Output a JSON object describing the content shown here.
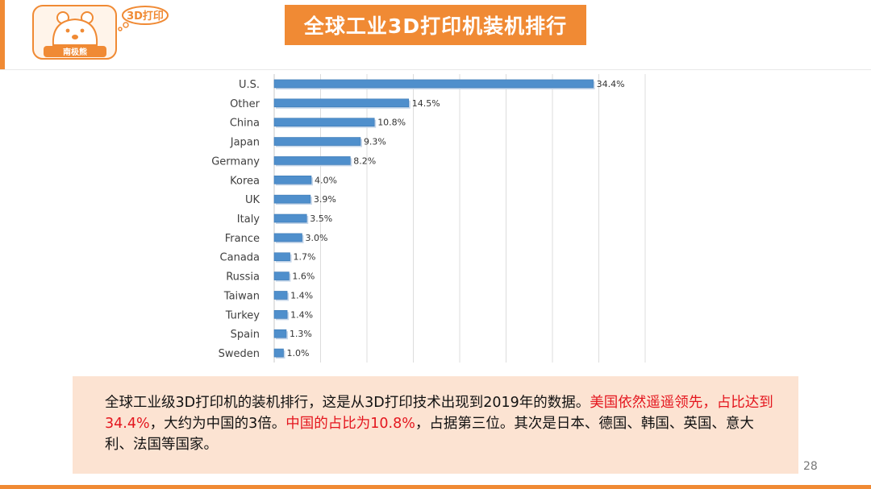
{
  "slide": {
    "title": "全球工业3D打印机装机排行",
    "page_number": "28"
  },
  "logo": {
    "bubble_text": "3D打印",
    "brand_text": "南极熊"
  },
  "colors": {
    "accent": "#f08a34",
    "bar": "#4f8fcc",
    "highlight_text": "#e4161e",
    "text_box_bg": "#fce3d2"
  },
  "chart_data": {
    "type": "bar",
    "orientation": "horizontal",
    "categories": [
      "U.S.",
      "Other",
      "China",
      "Japan",
      "Germany",
      "Korea",
      "UK",
      "Italy",
      "France",
      "Canada",
      "Russia",
      "Taiwan",
      "Turkey",
      "Spain",
      "Sweden"
    ],
    "values": [
      34.4,
      14.5,
      10.8,
      9.3,
      8.2,
      4.0,
      3.9,
      3.5,
      3.0,
      1.7,
      1.6,
      1.4,
      1.4,
      1.3,
      1.0
    ],
    "labels": [
      "34.4%",
      "14.5%",
      "10.8%",
      "9.3%",
      "8.2%",
      "4.0%",
      "3.9%",
      "3.5%",
      "3.0%",
      "1.7%",
      "1.6%",
      "1.4%",
      "1.4%",
      "1.3%",
      "1.0%"
    ],
    "xlim": [
      0,
      40
    ],
    "grid": true,
    "legend": "none"
  },
  "text_box": {
    "part1": "全球工业级3D打印机的装机排行，这是从3D打印技术出现到2019年的数据。",
    "highlight1": "美国依然遥遥领先，占比达到34.4%",
    "part2": "，大约为中国的3倍。",
    "highlight2": "中国的占比为10.8%",
    "part3": "，占据第三位。其次是日本、德国、韩国、英国、意大利、法国等国家。"
  }
}
